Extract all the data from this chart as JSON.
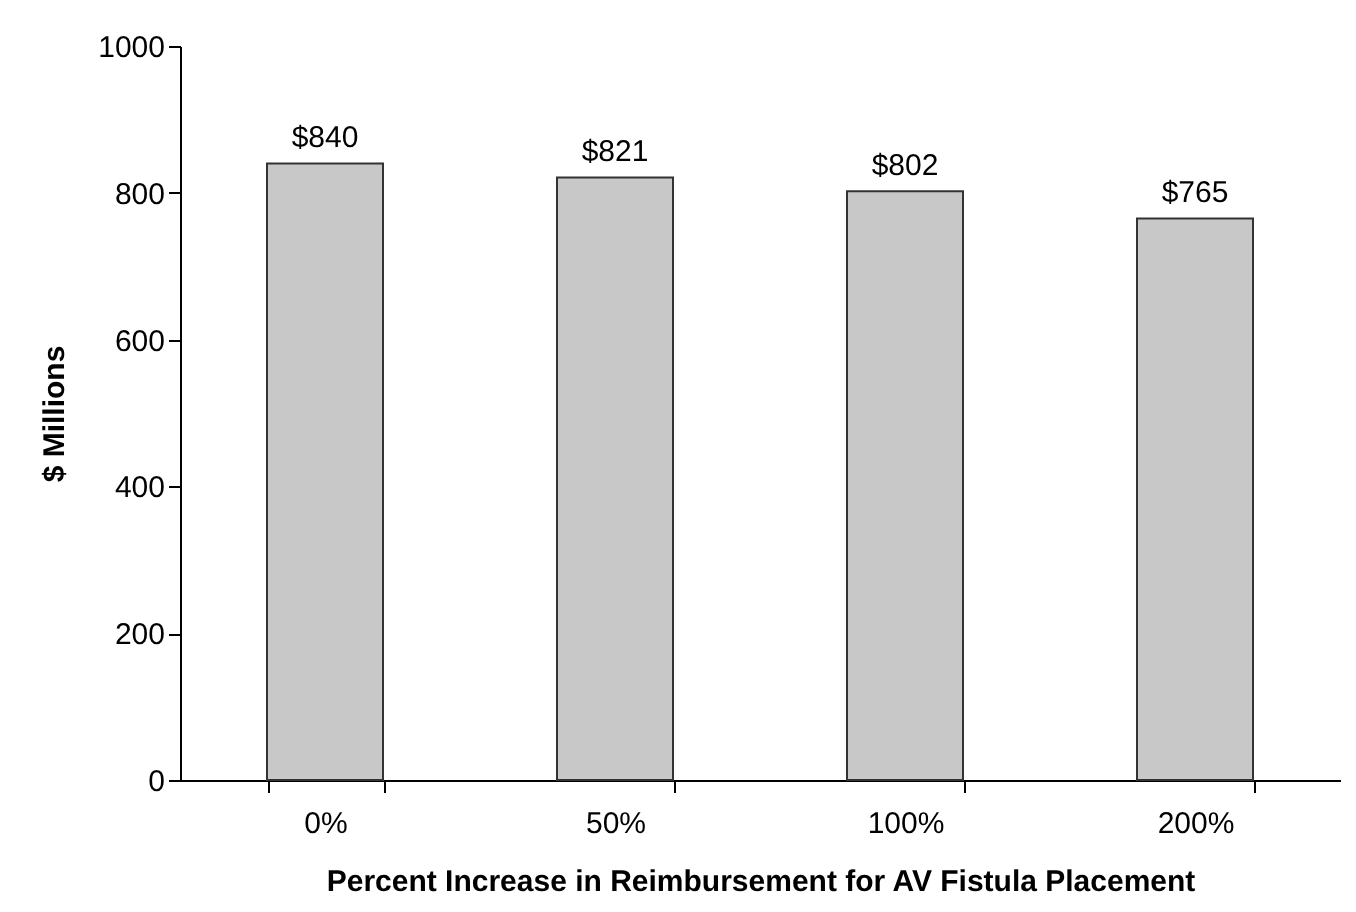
{
  "chart_data": {
    "type": "bar",
    "xlabel": "Percent Increase in Reimbursement for AV Fistula Placement",
    "ylabel": "$ Millions",
    "categories": [
      "0%",
      "50%",
      "100%",
      "200%"
    ],
    "values": [
      840,
      821,
      802,
      765
    ],
    "value_labels": [
      "$840",
      "$821",
      "$802",
      "$765"
    ],
    "color": "#c8c8c8",
    "ylim": [
      0,
      1000
    ],
    "yticks": [
      0,
      200,
      400,
      600,
      800,
      1000
    ]
  }
}
